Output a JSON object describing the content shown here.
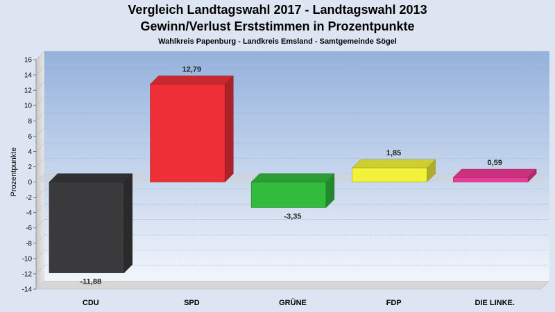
{
  "chart_data": {
    "type": "bar",
    "title": "Vergleich Landtagswahl 2017 - Landtagswahl 2013",
    "subtitle": "Gewinn/Verlust Erststimmen in Prozentpunkte",
    "caption": "Wahlkreis Papenburg - Landkreis Emsland - Samtgemeinde Sögel",
    "ylabel": "Prozentpunkte",
    "xlabel": "",
    "ylim": [
      -14,
      16
    ],
    "yticks": [
      16,
      14,
      12,
      10,
      8,
      6,
      4,
      2,
      0,
      -2,
      -4,
      -6,
      -8,
      -10,
      -12,
      -14
    ],
    "grid": true,
    "categories": [
      "CDU",
      "SPD",
      "GRÜNE",
      "FDP",
      "DIE LINKE."
    ],
    "values": [
      -11.88,
      12.79,
      -3.35,
      1.85,
      0.59
    ],
    "value_labels": [
      "-11,88",
      "12,79",
      "-3,35",
      "1,85",
      "0,59"
    ],
    "colors": [
      "#3a3a3c",
      "#ee2f37",
      "#33bb3e",
      "#f2f23a",
      "#ec3a95"
    ]
  }
}
